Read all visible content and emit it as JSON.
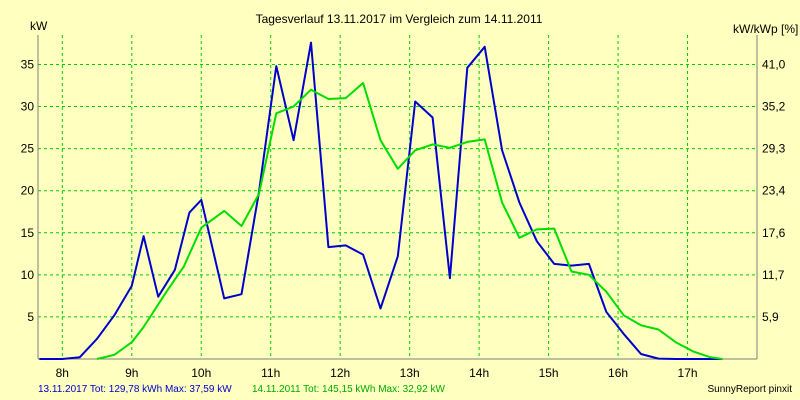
{
  "chart_data": {
    "type": "line",
    "title": "Tagesverlauf 13.11.2017 im Vergleich zum 14.11.2011",
    "ylabel": "kW",
    "ylabel_right": "kW/kWp [%]",
    "xlim": [
      7.65,
      18.0
    ],
    "ylim": [
      0,
      38.5
    ],
    "x_ticks": [
      8,
      9,
      10,
      11,
      12,
      13,
      14,
      15,
      16,
      17
    ],
    "x_tick_labels": [
      "8h",
      "9h",
      "10h",
      "11h",
      "12h",
      "13h",
      "14h",
      "15h",
      "16h",
      "17h"
    ],
    "y_ticks": [
      5,
      10,
      15,
      20,
      25,
      30,
      35
    ],
    "y_tick_labels": [
      "5",
      "10",
      "15",
      "20",
      "25",
      "30",
      "35"
    ],
    "y2_ticks": [
      5,
      10,
      15,
      20,
      25,
      30,
      35
    ],
    "y2_tick_labels": [
      "5,9",
      "11,7",
      "17,6",
      "23,4",
      "29,3",
      "35,2",
      "41,0"
    ],
    "grid": true,
    "series": [
      {
        "name": "13.11.2017",
        "color": "#0000CC",
        "points": [
          [
            7.67,
            0
          ],
          [
            8.0,
            0
          ],
          [
            8.25,
            0.2
          ],
          [
            8.5,
            2.4
          ],
          [
            8.75,
            5.2
          ],
          [
            9.0,
            8.7
          ],
          [
            9.17,
            14.6
          ],
          [
            9.38,
            7.4
          ],
          [
            9.62,
            10.6
          ],
          [
            9.83,
            17.4
          ],
          [
            10.0,
            18.9
          ],
          [
            10.33,
            7.2
          ],
          [
            10.58,
            7.7
          ],
          [
            10.83,
            19.8
          ],
          [
            11.08,
            34.8
          ],
          [
            11.33,
            26.0
          ],
          [
            11.58,
            37.6
          ],
          [
            11.83,
            13.3
          ],
          [
            12.08,
            13.5
          ],
          [
            12.33,
            12.4
          ],
          [
            12.58,
            6.0
          ],
          [
            12.83,
            12.2
          ],
          [
            13.08,
            30.6
          ],
          [
            13.33,
            28.7
          ],
          [
            13.58,
            9.6
          ],
          [
            13.83,
            34.6
          ],
          [
            14.08,
            37.1
          ],
          [
            14.33,
            24.8
          ],
          [
            14.58,
            18.6
          ],
          [
            14.83,
            14.0
          ],
          [
            15.08,
            11.3
          ],
          [
            15.33,
            11.1
          ],
          [
            15.58,
            11.3
          ],
          [
            15.83,
            5.6
          ],
          [
            16.08,
            3.0
          ],
          [
            16.33,
            0.6
          ],
          [
            16.58,
            0.05
          ],
          [
            16.83,
            0
          ],
          [
            17.33,
            0
          ],
          [
            17.5,
            0
          ]
        ]
      },
      {
        "name": "14.11.2011",
        "color": "#00DD00",
        "points": [
          [
            8.5,
            0
          ],
          [
            8.75,
            0.5
          ],
          [
            9.0,
            2.0
          ],
          [
            9.17,
            3.8
          ],
          [
            9.5,
            8.0
          ],
          [
            9.75,
            11.0
          ],
          [
            10.0,
            15.6
          ],
          [
            10.33,
            17.6
          ],
          [
            10.58,
            15.8
          ],
          [
            10.83,
            19.6
          ],
          [
            11.08,
            29.2
          ],
          [
            11.33,
            30.0
          ],
          [
            11.58,
            32.0
          ],
          [
            11.83,
            30.9
          ],
          [
            12.08,
            31.0
          ],
          [
            12.33,
            32.8
          ],
          [
            12.58,
            26.0
          ],
          [
            12.83,
            22.6
          ],
          [
            13.08,
            24.8
          ],
          [
            13.33,
            25.5
          ],
          [
            13.58,
            25.1
          ],
          [
            13.83,
            25.8
          ],
          [
            14.08,
            26.1
          ],
          [
            14.33,
            18.6
          ],
          [
            14.58,
            14.4
          ],
          [
            14.83,
            15.4
          ],
          [
            15.08,
            15.5
          ],
          [
            15.33,
            10.4
          ],
          [
            15.58,
            10.0
          ],
          [
            15.83,
            8.0
          ],
          [
            16.08,
            5.2
          ],
          [
            16.33,
            4.0
          ],
          [
            16.58,
            3.5
          ],
          [
            16.83,
            2.0
          ],
          [
            17.08,
            0.9
          ],
          [
            17.33,
            0.2
          ],
          [
            17.5,
            0
          ]
        ]
      }
    ]
  },
  "footer": {
    "series1": "13.11.2017 Tot: 129,78 kWh Max: 37,59 kW",
    "series2": "14.11.2011 Tot: 145,15 kWh Max: 32,92 kW",
    "credit": "SunnyReport pinxit"
  },
  "colors": {
    "background": "#FFFFC0",
    "grid": "#00CC00",
    "series1": "#0000CC",
    "series2": "#00DD00"
  }
}
